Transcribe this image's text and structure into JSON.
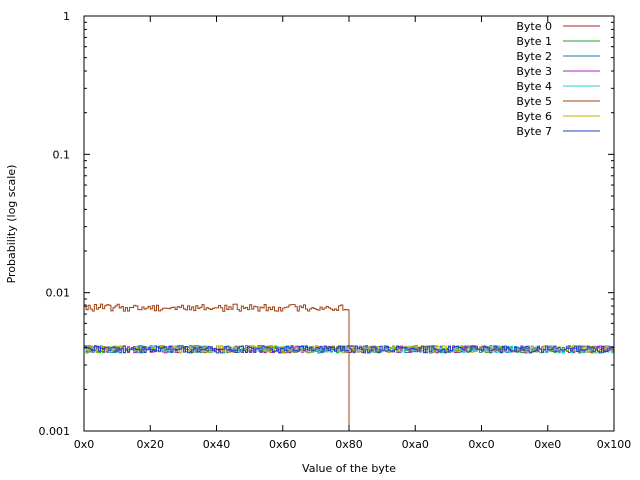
{
  "chart_data": {
    "type": "line",
    "title": "",
    "xlabel": "Value of the byte",
    "ylabel": "Probability (log scale)",
    "xlim": [
      0,
      256
    ],
    "ylim": [
      0.001,
      1
    ],
    "y_scale": "log",
    "grid": false,
    "legend_position": "top-right",
    "x_ticks": [
      {
        "value": 0,
        "label": "0x0"
      },
      {
        "value": 32,
        "label": "0x20"
      },
      {
        "value": 64,
        "label": "0x40"
      },
      {
        "value": 96,
        "label": "0x60"
      },
      {
        "value": 128,
        "label": "0x80"
      },
      {
        "value": 160,
        "label": "0xa0"
      },
      {
        "value": 192,
        "label": "0xc0"
      },
      {
        "value": 224,
        "label": "0xe0"
      },
      {
        "value": 256,
        "label": "0x100"
      }
    ],
    "y_ticks": [
      {
        "value": 0.001,
        "label": "0.001"
      },
      {
        "value": 0.01,
        "label": "0.01"
      },
      {
        "value": 0.1,
        "label": "0.1"
      },
      {
        "value": 1,
        "label": "1"
      }
    ],
    "series": [
      {
        "name": "Byte 0",
        "color": "#a02a2a",
        "pattern": "uniform",
        "level": 0.0039
      },
      {
        "name": "Byte 1",
        "color": "#20a020",
        "pattern": "uniform",
        "level": 0.0039
      },
      {
        "name": "Byte 2",
        "color": "#1a7ab0",
        "pattern": "uniform",
        "level": 0.0039
      },
      {
        "name": "Byte 3",
        "color": "#b020c0",
        "pattern": "uniform",
        "level": 0.0039
      },
      {
        "name": "Byte 4",
        "color": "#20d0d0",
        "pattern": "uniform",
        "level": 0.0039
      },
      {
        "name": "Byte 5",
        "color": "#a04010",
        "pattern": "half-range",
        "level": 0.0078,
        "last_nonzero_value": 127
      },
      {
        "name": "Byte 6",
        "color": "#c0b000",
        "pattern": "uniform",
        "level": 0.0039
      },
      {
        "name": "Byte 7",
        "color": "#2040d0",
        "pattern": "uniform",
        "level": 0.0039
      }
    ]
  }
}
